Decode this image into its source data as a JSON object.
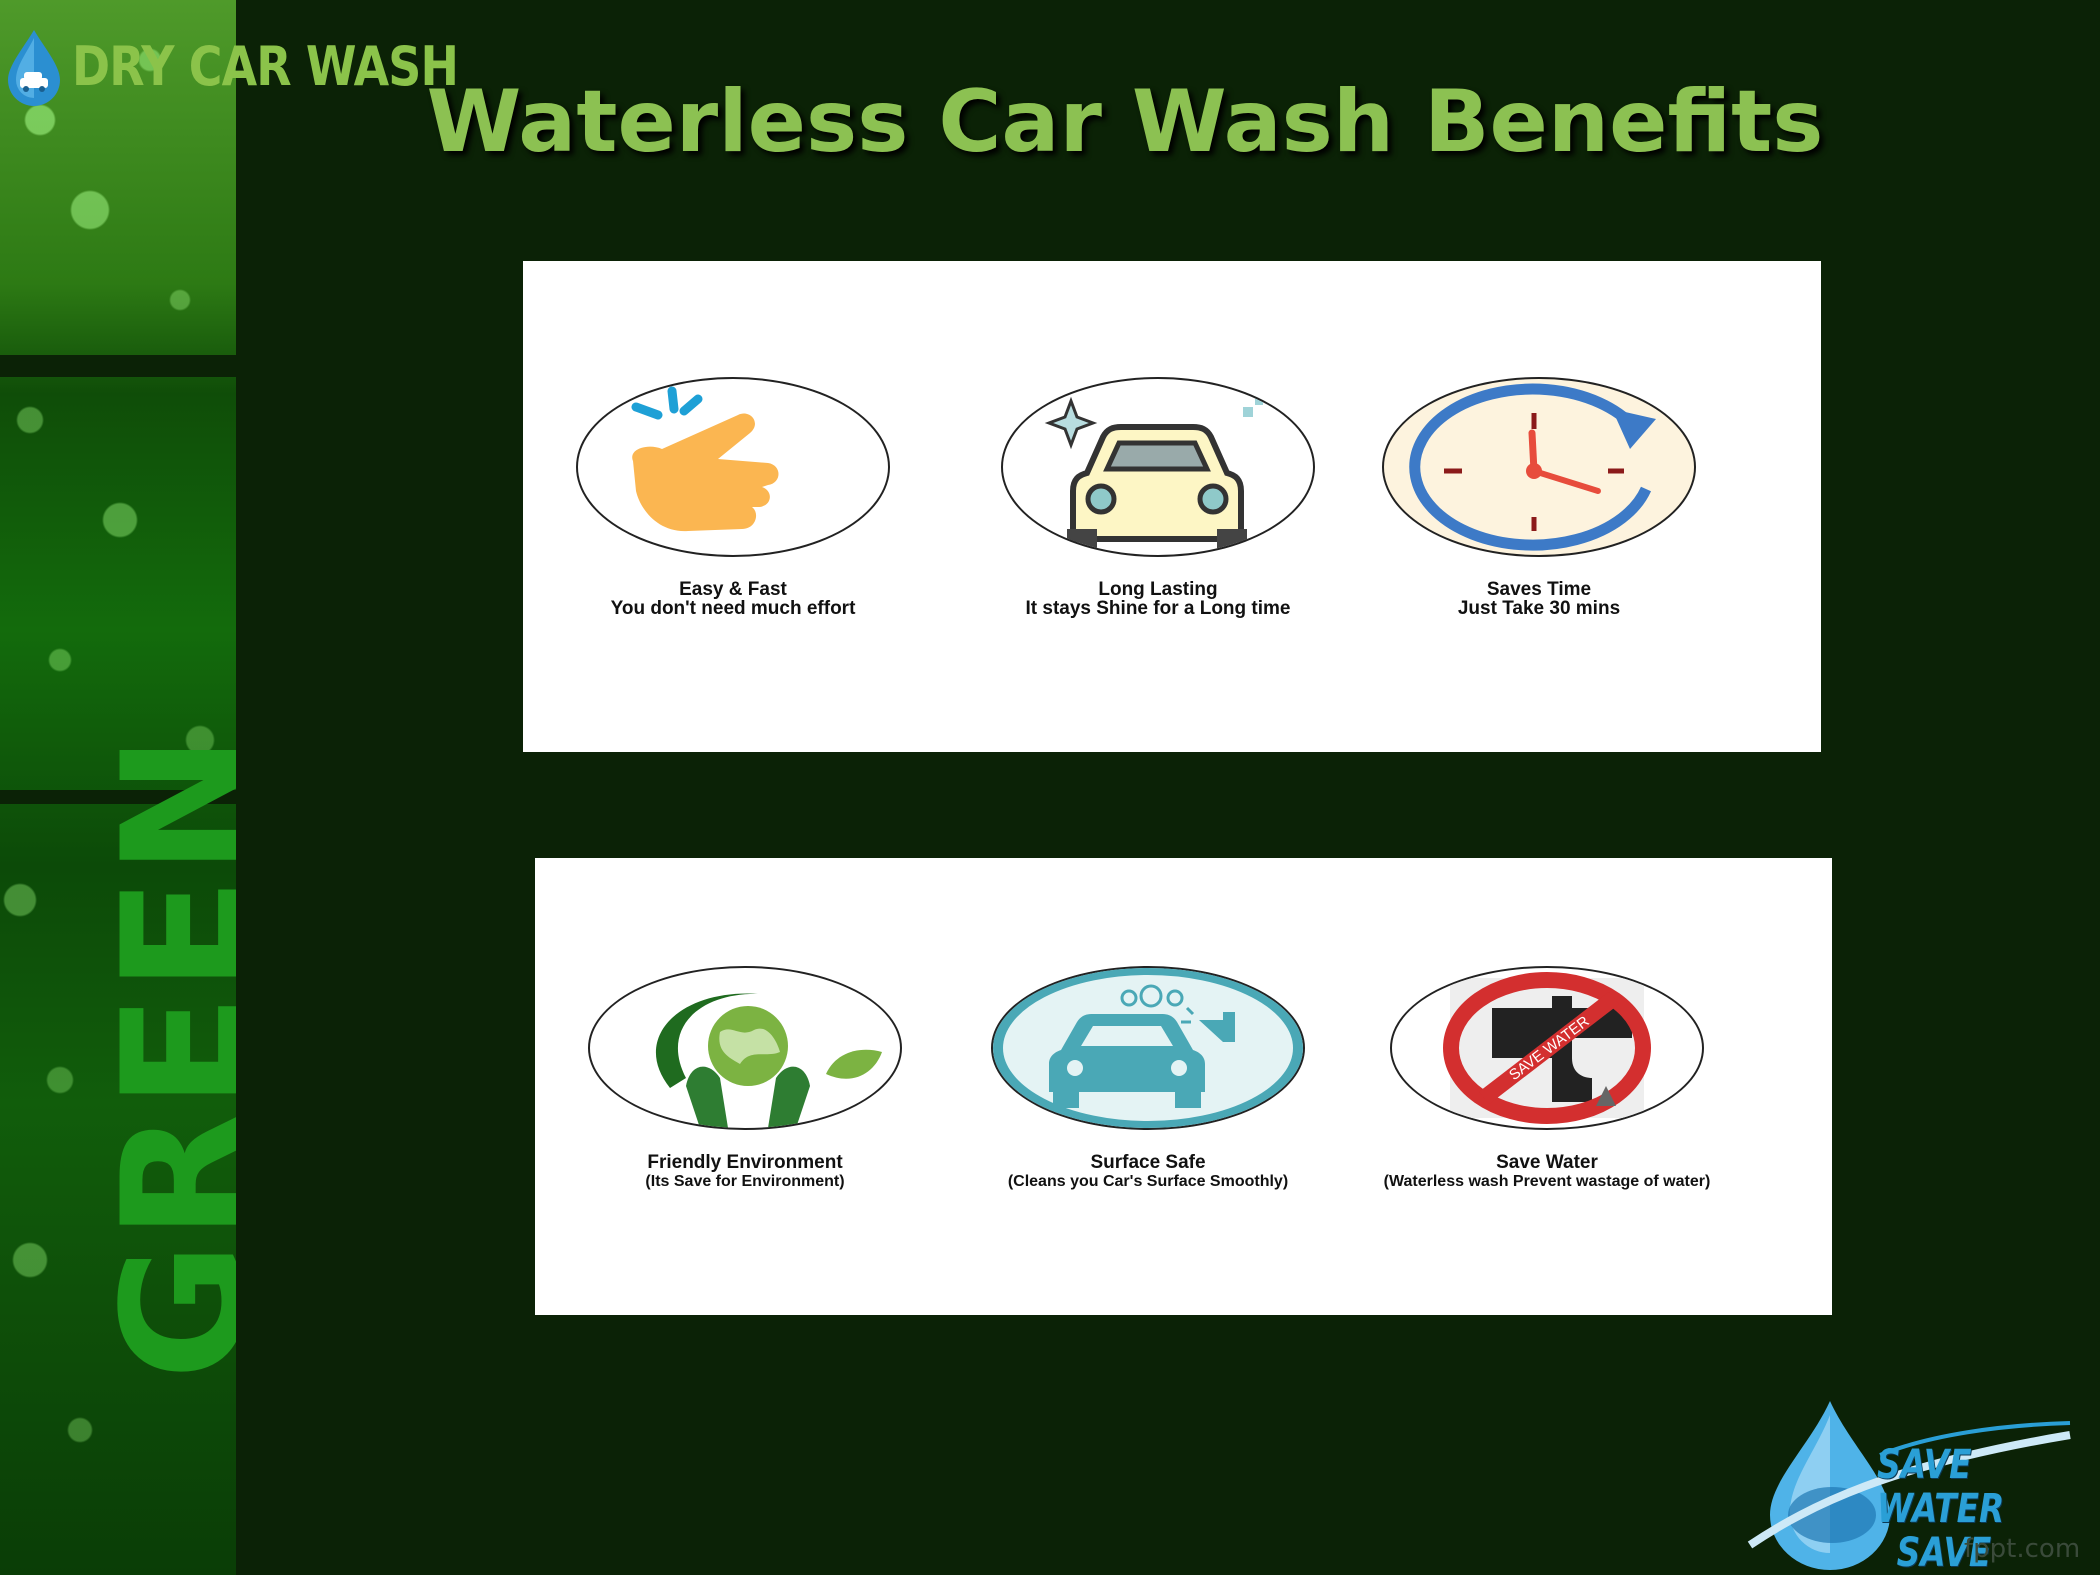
{
  "logo": {
    "text": "DRY CAR WASH"
  },
  "side_word": "GREEN",
  "title": "Waterless Car Wash Benefits",
  "benefits_top": [
    {
      "icon": "tap-hand-icon",
      "title": "Easy & Fast",
      "subtitle": "You don't need much effort"
    },
    {
      "icon": "shiny-car-icon",
      "title": "Long Lasting",
      "subtitle": "It stays Shine for a Long time"
    },
    {
      "icon": "clock-icon",
      "title": "Saves Time",
      "subtitle": "Just Take 30 mins"
    }
  ],
  "benefits_bottom": [
    {
      "icon": "globe-hands-icon",
      "title": "Friendly Environment",
      "subtitle": "(Its Save for Environment)"
    },
    {
      "icon": "car-spray-icon",
      "title": "Surface Safe",
      "subtitle": "(Cleans you Car's Surface Smoothly)"
    },
    {
      "icon": "no-tap-icon",
      "title": "Save Water",
      "subtitle": "(Waterless wash Prevent wastage of water)",
      "sign_text": "SAVE WATER"
    }
  ],
  "save_water_logo": {
    "line1": "SAVE WATER",
    "line2": "SAVE LIFE"
  },
  "watermark": "fppt.com",
  "colors": {
    "background": "#0b2206",
    "title": "#8cc152",
    "accent_blue": "#2a9fd6"
  }
}
